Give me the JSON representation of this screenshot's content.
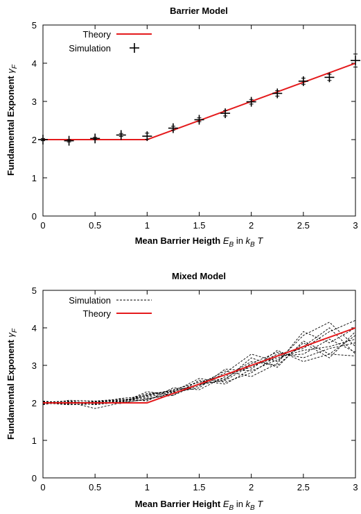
{
  "chart_data": [
    {
      "type": "scatter",
      "title": "Barrier Model",
      "xlabel": {
        "main": "Mean Barrier Heigth ",
        "var": "E",
        "var_sub": "B",
        "mid": " in ",
        "unit": "k",
        "unit_sub": "B",
        "tail": " T"
      },
      "ylabel": {
        "main": "Fundamental Exponent ",
        "var": "γ",
        "var_sub": "F"
      },
      "xlim": [
        0,
        3
      ],
      "ylim": [
        0,
        5
      ],
      "xticks": [
        0,
        0.5,
        1,
        1.5,
        2,
        2.5,
        3
      ],
      "xtick_labels": [
        "0",
        "0.5",
        "1",
        "1.5",
        "2",
        "2.5",
        "3"
      ],
      "yticks": [
        0,
        1,
        2,
        3,
        4,
        5
      ],
      "ytick_labels": [
        "0",
        "1",
        "2",
        "3",
        "4",
        "5"
      ],
      "legend_position": "top-left",
      "grid": false,
      "series": [
        {
          "name": "Theory",
          "style": "line",
          "color": "#e41a1c",
          "x": [
            0,
            1,
            3
          ],
          "y": [
            2,
            2,
            4
          ]
        },
        {
          "name": "Simulation",
          "style": "plus",
          "color": "#000000",
          "x": [
            0,
            0.25,
            0.5,
            0.75,
            1,
            1.25,
            1.5,
            1.75,
            2,
            2.25,
            2.5,
            2.75,
            3
          ],
          "y": [
            2.0,
            1.97,
            2.03,
            2.12,
            2.09,
            2.3,
            2.52,
            2.69,
            2.99,
            3.21,
            3.53,
            3.63,
            4.07
          ],
          "yerr": [
            0.03,
            0.03,
            0.03,
            0.04,
            0.08,
            0.05,
            0.05,
            0.07,
            0.06,
            0.07,
            0.08,
            0.08,
            0.17
          ]
        }
      ]
    },
    {
      "type": "line",
      "title": "Mixed Model",
      "xlabel": {
        "main": "Mean Barrier Height  ",
        "var": "E",
        "var_sub": "B",
        "mid": " in ",
        "unit": "k",
        "unit_sub": "B",
        "tail": " T"
      },
      "ylabel": {
        "main": "Fundamental Exponent ",
        "var": "γ",
        "var_sub": "F"
      },
      "xlim": [
        0,
        3
      ],
      "ylim": [
        0,
        5
      ],
      "xticks": [
        0,
        0.5,
        1,
        1.5,
        2,
        2.5,
        3
      ],
      "xtick_labels": [
        "0",
        "0.5",
        "1",
        "1.5",
        "2",
        "2.5",
        "3"
      ],
      "yticks": [
        0,
        1,
        2,
        3,
        4,
        5
      ],
      "ytick_labels": [
        "0",
        "1",
        "2",
        "3",
        "4",
        "5"
      ],
      "legend_position": "top-left",
      "grid": false,
      "x": [
        0,
        0.25,
        0.5,
        0.75,
        1,
        1.25,
        1.5,
        1.75,
        2,
        2.25,
        2.5,
        2.75,
        3
      ],
      "series": [
        {
          "name": "Simulation",
          "style": "dashed",
          "color": "#000000",
          "runs": [
            [
              2.02,
              2.05,
              1.98,
              2.05,
              2.2,
              2.35,
              2.55,
              2.75,
              2.95,
              3.3,
              3.45,
              3.9,
              4.2
            ],
            [
              1.98,
              2.0,
              2.03,
              2.08,
              2.15,
              2.3,
              2.5,
              2.6,
              3.0,
              3.2,
              3.4,
              3.5,
              3.7
            ],
            [
              2.0,
              2.02,
              1.85,
              2.0,
              2.1,
              2.25,
              2.45,
              2.8,
              3.3,
              3.1,
              3.8,
              4.15,
              3.5
            ],
            [
              2.05,
              1.98,
              2.0,
              2.0,
              2.3,
              2.2,
              2.6,
              2.5,
              2.9,
              3.4,
              3.1,
              3.3,
              3.25
            ],
            [
              1.95,
              2.07,
              2.05,
              2.1,
              2.05,
              2.4,
              2.35,
              2.7,
              3.1,
              3.0,
              3.6,
              3.2,
              3.9
            ],
            [
              2.0,
              1.95,
              1.97,
              2.03,
              2.25,
              2.3,
              2.65,
              2.55,
              2.8,
              3.25,
              3.3,
              3.7,
              3.35
            ],
            [
              2.03,
              2.0,
              2.02,
              2.06,
              2.12,
              2.2,
              2.5,
              2.85,
              2.7,
              3.05,
              3.9,
              3.6,
              4.0
            ],
            [
              1.97,
              2.03,
              2.0,
              2.12,
              2.18,
              2.35,
              2.55,
              2.65,
              3.05,
              3.35,
              3.2,
              3.45,
              3.6
            ],
            [
              2.01,
              2.01,
              1.95,
              2.02,
              2.08,
              2.28,
              2.4,
              2.9,
              2.85,
              3.15,
              3.5,
              4.0,
              3.3
            ],
            [
              1.99,
              1.97,
              2.04,
              1.98,
              2.22,
              2.32,
              2.48,
              2.62,
              3.2,
              2.95,
              3.65,
              3.3,
              3.8
            ]
          ]
        },
        {
          "name": "Theory",
          "style": "line",
          "color": "#e41a1c",
          "x": [
            0,
            1,
            3
          ],
          "y": [
            2,
            2,
            4
          ]
        }
      ]
    }
  ]
}
